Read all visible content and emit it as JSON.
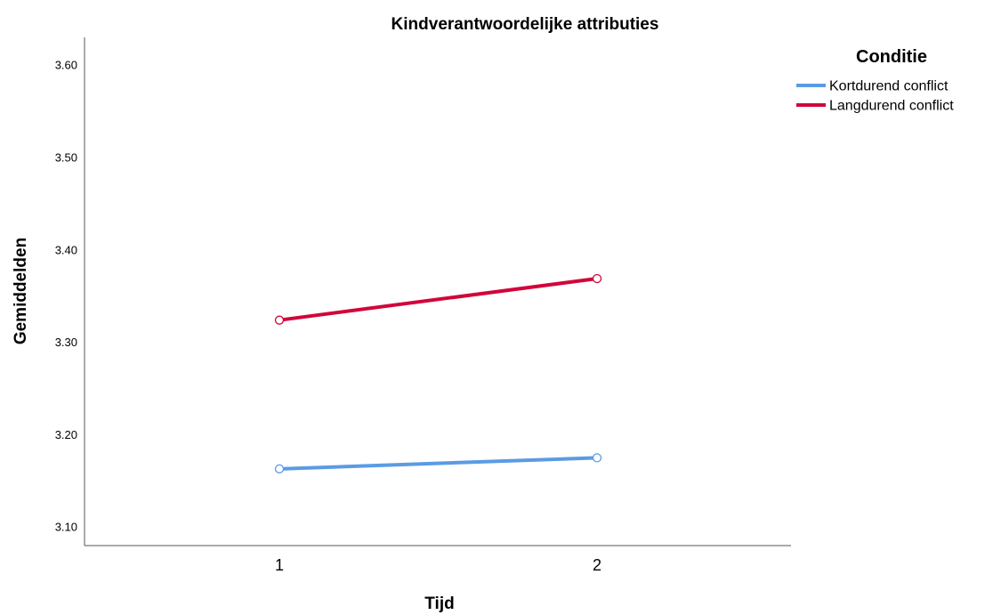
{
  "chart_data": {
    "type": "line",
    "title": "Kindverantwoordelijke attributies",
    "xlabel": "Tijd",
    "ylabel": "Gemiddelden",
    "categories": [
      "1",
      "2"
    ],
    "ylim": [
      3.08,
      3.63
    ],
    "yticks": [
      3.1,
      3.2,
      3.3,
      3.4,
      3.5,
      3.6
    ],
    "ytick_labels": [
      "3.10",
      "3.20",
      "3.30",
      "3.40",
      "3.50",
      "3.60"
    ],
    "grid": false,
    "legend": {
      "title": "Conditie",
      "placement": "top-right"
    },
    "series": [
      {
        "name": "Kortdurend conflict",
        "color": "#5b9be3",
        "values": [
          3.163,
          3.175
        ]
      },
      {
        "name": "Langdurend conflict",
        "color": "#d1063a",
        "values": [
          3.324,
          3.369
        ]
      }
    ]
  }
}
